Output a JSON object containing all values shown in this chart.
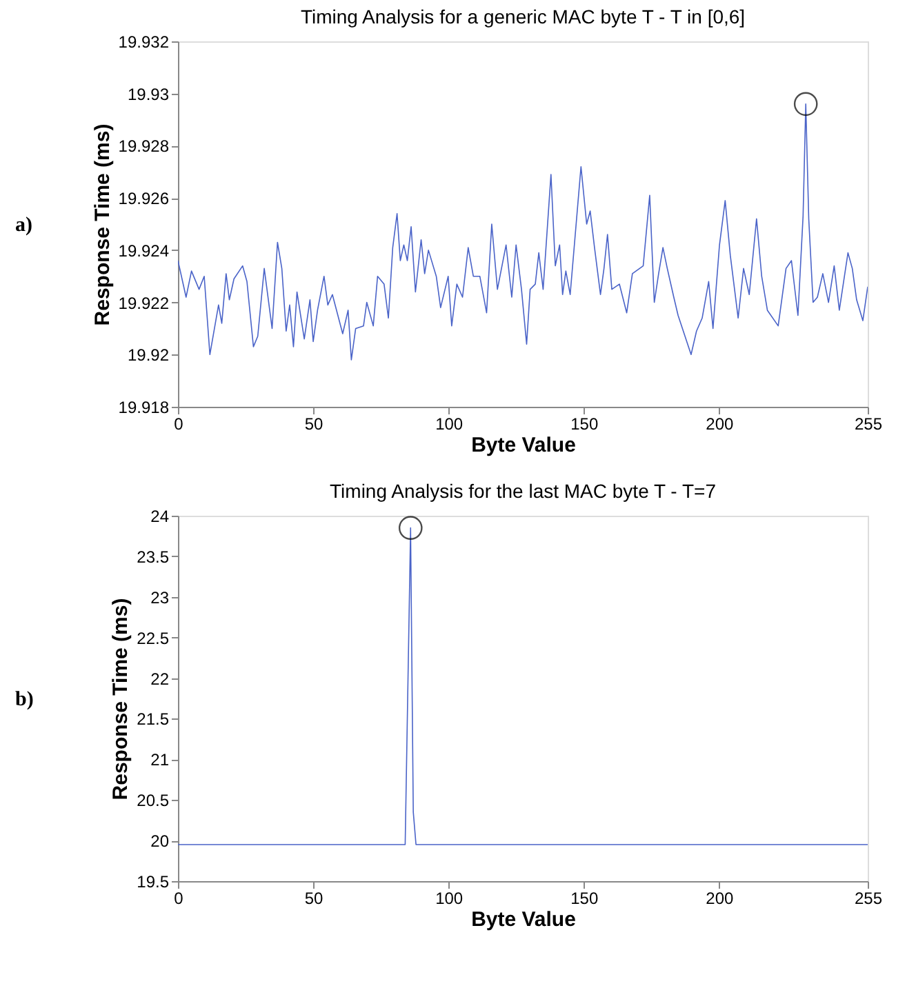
{
  "chart_data": [
    {
      "type": "line",
      "title": "Timing Analysis for a generic MAC byte T - T in [0,6]",
      "xlabel": "Byte Value",
      "ylabel": "Response Time (ms)",
      "annotations": [
        "a)"
      ],
      "grid": false,
      "color": "#4a63c8",
      "x": [
        0,
        3,
        5,
        7.8,
        9.7,
        11.8,
        15.0,
        16.2,
        17.8,
        19.0,
        20.7,
        23.9,
        25.5,
        27.9,
        29.5,
        31.9,
        34.8,
        36.8,
        38.4,
        40.0,
        41.3,
        42.7,
        44.0,
        46.7,
        48.8,
        50.0,
        51.6,
        54.0,
        55.4,
        57.1,
        60.9,
        62.9,
        64.1,
        65.7,
        68.6,
        69.8,
        72.2,
        73.8,
        76.2,
        77.8,
        79.4,
        81.0,
        82.2,
        83.5,
        84.8,
        86.2,
        87.8,
        89.9,
        91.2,
        92.6,
        95.5,
        97.1,
        99.9,
        101.2,
        103.1,
        105.2,
        107.3,
        109.2,
        111.6,
        114.1,
        116.0,
        118.1,
        121.3,
        123.4,
        125.0,
        127.0,
        128.9,
        130.2,
        132.1,
        133.4,
        135.0,
        137.9,
        139.5,
        141.1,
        142.2,
        143.4,
        145.0,
        149.0,
        151.1,
        152.4,
        154.0,
        156.2,
        157.5,
        158.8,
        160.4,
        163.2,
        165.9,
        168.0,
        172.0,
        174.4,
        176.1,
        177.7,
        179.3,
        180.9,
        183.3,
        184.9,
        189.7,
        191.7,
        193.8,
        196.2,
        197.8,
        200.2,
        202.3,
        204.2,
        207.1,
        209.1,
        211.2,
        213.9,
        215.8,
        217.9,
        221.9,
        224.8,
        226.8,
        229.2,
        231.1,
        232.1,
        233.2,
        234.8,
        236.4,
        238.4,
        240.5,
        242.6,
        244.5,
        247.7,
        249.3,
        250.9,
        253.2,
        255.0
      ],
      "values": [
        19.9236,
        19.9222,
        19.9232,
        19.9225,
        19.923,
        19.92,
        19.9219,
        19.9212,
        19.9231,
        19.9221,
        19.9229,
        19.9234,
        19.9228,
        19.9203,
        19.9207,
        19.9233,
        19.921,
        19.9243,
        19.9233,
        19.9209,
        19.9219,
        19.9203,
        19.9224,
        19.9206,
        19.9221,
        19.9205,
        19.9217,
        19.923,
        19.9219,
        19.9223,
        19.9208,
        19.9217,
        19.9198,
        19.921,
        19.9211,
        19.922,
        19.9211,
        19.923,
        19.9227,
        19.9214,
        19.9241,
        19.9254,
        19.9236,
        19.9242,
        19.9236,
        19.9249,
        19.9224,
        19.9244,
        19.9231,
        19.924,
        19.923,
        19.9218,
        19.923,
        19.9211,
        19.9227,
        19.9222,
        19.9241,
        19.923,
        19.923,
        19.9216,
        19.925,
        19.9225,
        19.9242,
        19.9222,
        19.9242,
        19.9225,
        19.9204,
        19.9225,
        19.9227,
        19.9239,
        19.9225,
        19.9269,
        19.9234,
        19.9242,
        19.9223,
        19.9232,
        19.9223,
        19.9272,
        19.925,
        19.9255,
        19.9241,
        19.9223,
        19.9233,
        19.9246,
        19.9225,
        19.9227,
        19.9216,
        19.9231,
        19.9234,
        19.9261,
        19.922,
        19.9231,
        19.9241,
        19.9233,
        19.9222,
        19.9215,
        19.92,
        19.9209,
        19.9214,
        19.9228,
        19.921,
        19.9242,
        19.9259,
        19.9238,
        19.9214,
        19.9233,
        19.9223,
        19.9252,
        19.923,
        19.9217,
        19.9211,
        19.9233,
        19.9236,
        19.9215,
        19.9253,
        19.9296,
        19.9252,
        19.922,
        19.9222,
        19.9231,
        19.922,
        19.9234,
        19.9217,
        19.9239,
        19.9233,
        19.9221,
        19.9213,
        19.9226
      ],
      "xlim": [
        0,
        255
      ],
      "ylim": [
        19.918,
        19.932
      ],
      "xticks": [
        0,
        50,
        100,
        150,
        200,
        255
      ],
      "yticks": [
        19.918,
        19.92,
        19.922,
        19.924,
        19.926,
        19.928,
        19.93,
        19.932
      ]
    },
    {
      "type": "line",
      "title": "Timing Analysis for the last MAC byte T - T=7",
      "xlabel": "Byte Value",
      "ylabel": "Response Time (ms)",
      "annotations": [
        "b)"
      ],
      "grid": false,
      "color": "#4a63c8",
      "x": [
        0,
        20,
        40,
        60,
        80,
        84,
        85,
        86,
        87,
        88,
        100,
        150,
        200,
        255
      ],
      "values": [
        19.95,
        19.95,
        19.95,
        19.95,
        19.95,
        19.95,
        21.9,
        23.85,
        20.35,
        19.95,
        19.95,
        19.95,
        19.95,
        19.95
      ],
      "xlim": [
        0,
        255
      ],
      "ylim": [
        19.5,
        24
      ],
      "xticks": [
        0,
        50,
        100,
        150,
        200,
        255
      ],
      "yticks": [
        19.5,
        20,
        20.5,
        21,
        21.5,
        22,
        22.5,
        23,
        23.5,
        24
      ]
    }
  ]
}
